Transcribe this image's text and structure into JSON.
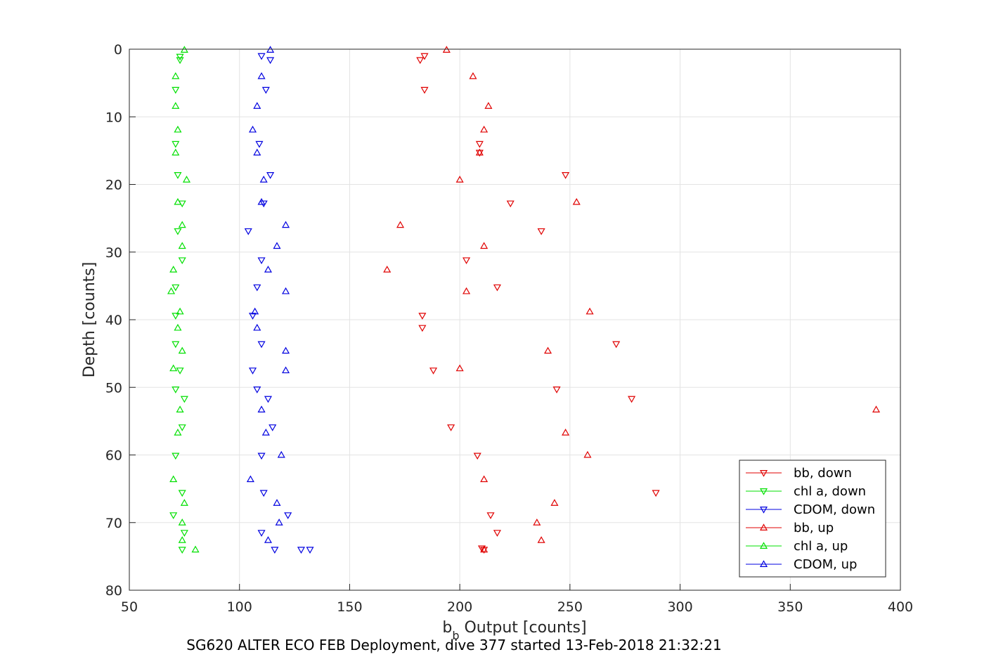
{
  "chart_data": {
    "type": "scatter",
    "xlabel_main": "b",
    "xlabel_sub": "b",
    "xlabel_rest": " Output [counts]",
    "ylabel": "Depth [counts]",
    "caption": "SG620 ALTER ECO FEB Deployment, dive 377 started 13-Feb-2018 21:32:21",
    "xlim": [
      50,
      400
    ],
    "ylim": [
      0,
      80
    ],
    "y_reversed": true,
    "grid": true,
    "legend_position": "bottom-right",
    "x_ticks": [
      "50",
      "100",
      "150",
      "200",
      "250",
      "300",
      "350",
      "400"
    ],
    "y_ticks": [
      "0",
      "10",
      "20",
      "30",
      "40",
      "50",
      "60",
      "70",
      "80"
    ],
    "series": [
      {
        "name": "bb, down",
        "color": "#e00000",
        "marker": "triangle-down",
        "points": [
          [
            184,
            1
          ],
          [
            182,
            1.6
          ],
          [
            184,
            6
          ],
          [
            209,
            14
          ],
          [
            209,
            15.3
          ],
          [
            248,
            18.6
          ],
          [
            223,
            22.8
          ],
          [
            237,
            26.9
          ],
          [
            203,
            31.2
          ],
          [
            217,
            35.2
          ],
          [
            183,
            39.4
          ],
          [
            183,
            41.2
          ],
          [
            271,
            43.6
          ],
          [
            188,
            47.5
          ],
          [
            244,
            50.3
          ],
          [
            278,
            51.7
          ],
          [
            196,
            55.9
          ],
          [
            208,
            60.1
          ],
          [
            289,
            65.6
          ],
          [
            214,
            68.9
          ],
          [
            217,
            71.5
          ],
          [
            211,
            74
          ],
          [
            210,
            73.8
          ]
        ]
      },
      {
        "name": "chl a, down",
        "color": "#00e000",
        "marker": "triangle-down",
        "points": [
          [
            73,
            1.1
          ],
          [
            73,
            1.6
          ],
          [
            71,
            6
          ],
          [
            71,
            14
          ],
          [
            72,
            18.6
          ],
          [
            74,
            22.8
          ],
          [
            72,
            26.9
          ],
          [
            74,
            31.2
          ],
          [
            71,
            35.2
          ],
          [
            71,
            39.4
          ],
          [
            71,
            43.6
          ],
          [
            73,
            47.5
          ],
          [
            71,
            50.3
          ],
          [
            75,
            51.7
          ],
          [
            74,
            55.9
          ],
          [
            71,
            60.1
          ],
          [
            74,
            65.6
          ],
          [
            70,
            68.9
          ],
          [
            75,
            71.5
          ],
          [
            74,
            74
          ]
        ]
      },
      {
        "name": "CDOM, down",
        "color": "#0000e0",
        "marker": "triangle-down",
        "points": [
          [
            110,
            1
          ],
          [
            114,
            1.6
          ],
          [
            112,
            6
          ],
          [
            109,
            14
          ],
          [
            114,
            18.6
          ],
          [
            111,
            22.8
          ],
          [
            104,
            26.9
          ],
          [
            110,
            31.2
          ],
          [
            108,
            35.2
          ],
          [
            106,
            39.4
          ],
          [
            110,
            43.6
          ],
          [
            106,
            47.5
          ],
          [
            108,
            50.3
          ],
          [
            113,
            51.7
          ],
          [
            115,
            55.9
          ],
          [
            110,
            60.1
          ],
          [
            111,
            65.6
          ],
          [
            122,
            68.9
          ],
          [
            110,
            71.5
          ],
          [
            116,
            74
          ],
          [
            128,
            74
          ],
          [
            132,
            74
          ]
        ]
      },
      {
        "name": "bb, up",
        "color": "#e00000",
        "marker": "triangle-up",
        "points": [
          [
            194,
            0.1
          ],
          [
            206,
            4
          ],
          [
            213,
            8.4
          ],
          [
            211,
            11.9
          ],
          [
            209,
            15.3
          ],
          [
            200,
            19.3
          ],
          [
            253,
            22.6
          ],
          [
            173,
            26
          ],
          [
            211,
            29.1
          ],
          [
            167,
            32.6
          ],
          [
            203,
            35.8
          ],
          [
            259,
            38.8
          ],
          [
            240,
            44.6
          ],
          [
            200,
            47.2
          ],
          [
            389,
            53.3
          ],
          [
            248,
            56.7
          ],
          [
            258,
            60
          ],
          [
            211,
            63.6
          ],
          [
            243,
            67.1
          ],
          [
            235,
            70
          ],
          [
            237,
            72.6
          ],
          [
            211,
            74
          ]
        ]
      },
      {
        "name": "chl a, up",
        "color": "#00e000",
        "marker": "triangle-up",
        "points": [
          [
            75,
            0.1
          ],
          [
            71,
            4
          ],
          [
            71,
            8.4
          ],
          [
            72,
            11.9
          ],
          [
            71,
            15.3
          ],
          [
            76,
            19.3
          ],
          [
            72,
            22.6
          ],
          [
            74,
            26
          ],
          [
            74,
            29.1
          ],
          [
            70,
            32.6
          ],
          [
            69,
            35.8
          ],
          [
            73,
            38.8
          ],
          [
            72,
            41.2
          ],
          [
            74,
            44.6
          ],
          [
            70,
            47.2
          ],
          [
            73,
            53.3
          ],
          [
            72,
            56.7
          ],
          [
            70,
            63.6
          ],
          [
            75,
            67.1
          ],
          [
            74,
            70
          ],
          [
            74,
            72.6
          ],
          [
            80,
            74
          ]
        ]
      },
      {
        "name": "CDOM, up",
        "color": "#0000e0",
        "marker": "triangle-up",
        "points": [
          [
            114,
            0.1
          ],
          [
            110,
            4
          ],
          [
            108,
            8.4
          ],
          [
            106,
            11.9
          ],
          [
            108,
            15.3
          ],
          [
            111,
            19.3
          ],
          [
            110,
            22.6
          ],
          [
            121,
            26
          ],
          [
            117,
            29.1
          ],
          [
            113,
            32.6
          ],
          [
            121,
            35.8
          ],
          [
            107,
            38.8
          ],
          [
            108,
            41.2
          ],
          [
            121,
            44.6
          ],
          [
            121,
            47.5
          ],
          [
            110,
            53.3
          ],
          [
            112,
            56.7
          ],
          [
            119,
            60
          ],
          [
            105,
            63.6
          ],
          [
            117,
            67.1
          ],
          [
            118,
            70
          ],
          [
            113,
            72.6
          ]
        ]
      }
    ]
  }
}
